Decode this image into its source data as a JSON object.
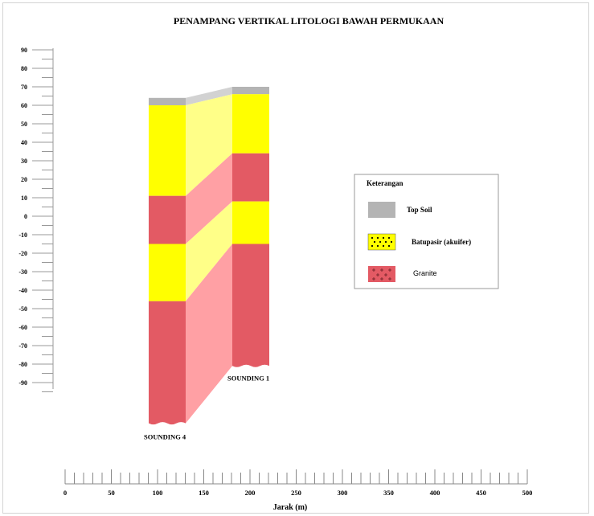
{
  "title": "PENAMPANG VERTIKAL LITOLOGI BAWAH PERMUKAAN",
  "depth_axis": {
    "ticks": [
      "90",
      "80",
      "70",
      "60",
      "50",
      "40",
      "30",
      "20",
      "10",
      "0",
      "-10",
      "-20",
      "-30",
      "-40",
      "-50",
      "-60",
      "-70",
      "-80",
      "-90"
    ],
    "min": -90,
    "max": 90,
    "major_step": 10,
    "minor_step": 5
  },
  "distance_axis": {
    "label": "Jarak (m)",
    "ticks": [
      "0",
      "50",
      "100",
      "150",
      "200",
      "250",
      "300",
      "350",
      "400",
      "450",
      "500"
    ],
    "min": 0,
    "max": 500,
    "major_step": 50,
    "minor_step": 10
  },
  "soundings": [
    {
      "name": "SOUNDING 4",
      "layers": [
        {
          "type": "Top Soil",
          "top": 64,
          "bottom": 60
        },
        {
          "type": "Batupasir (akuifer)",
          "top": 60,
          "bottom": 11
        },
        {
          "type": "Granite",
          "top": 11,
          "bottom": -15
        },
        {
          "type": "Batupasir (akuifer)",
          "top": -15,
          "bottom": -46
        },
        {
          "type": "Granite",
          "top": -46,
          "bottom": -112
        }
      ]
    },
    {
      "name": "SOUNDING 1",
      "layers": [
        {
          "type": "Top Soil",
          "top": 70,
          "bottom": 66
        },
        {
          "type": "Batupasir (akuifer)",
          "top": 66,
          "bottom": 34
        },
        {
          "type": "Granite",
          "top": 34,
          "bottom": 8
        },
        {
          "type": "Batupasir (akuifer)",
          "top": 8,
          "bottom": -15
        },
        {
          "type": "Granite",
          "top": -15,
          "bottom": -81
        }
      ]
    }
  ],
  "legend": {
    "title": "Keterangan",
    "items": [
      {
        "label": "Top Soil",
        "color": "#b4b4b4",
        "pattern": "none"
      },
      {
        "label": "Batupasir (akuifer)",
        "color": "#ffff00",
        "pattern": "dots"
      },
      {
        "label": "Granite",
        "color": "#e35a64",
        "pattern": "crosses"
      }
    ]
  },
  "colors": {
    "topsoil": "#b4b4b4",
    "topsoil_link": "#d2d2d2",
    "sand": "#ffff00",
    "sand_link": "#ffff88",
    "granite": "#e35a64",
    "granite_link": "#ffa0a4"
  }
}
